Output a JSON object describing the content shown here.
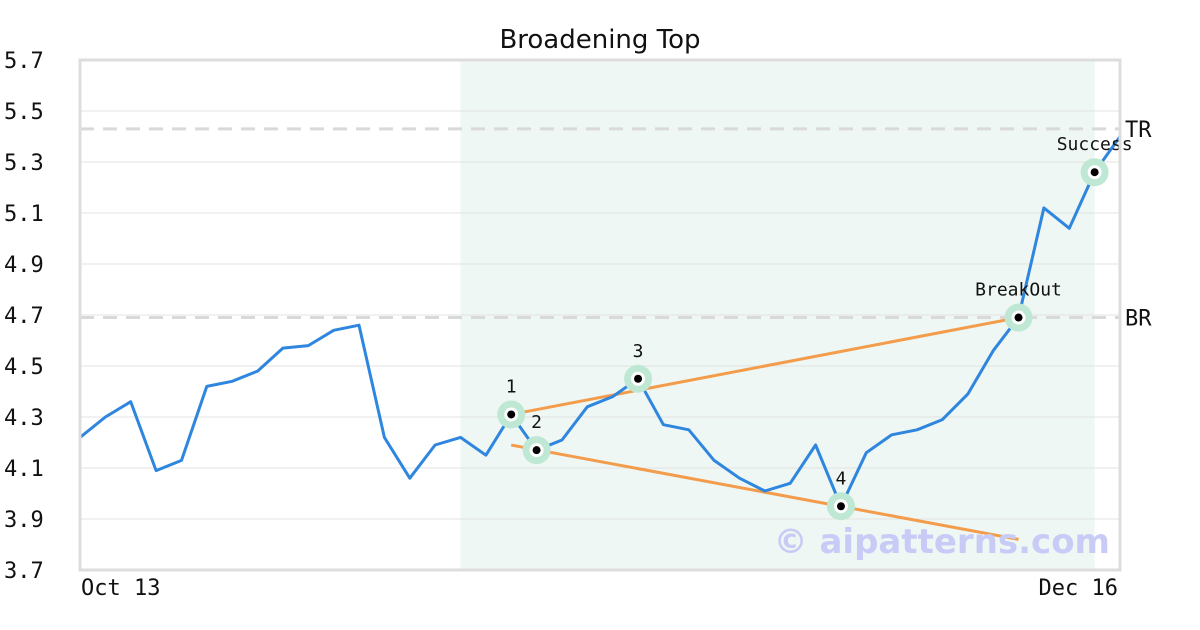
{
  "chart_data": {
    "type": "line",
    "title": "Broadening Top",
    "xlabel": "",
    "ylabel": "",
    "x_tick_labels": [
      "Oct 13",
      "Dec 16"
    ],
    "y_ticks": [
      "3.7",
      "3.9",
      "4.1",
      "4.3",
      "4.5",
      "4.7",
      "4.9",
      "5.1",
      "5.3",
      "5.5",
      "5.7"
    ],
    "ylim": [
      3.7,
      5.7
    ],
    "grid": "horizontal",
    "line_color": "#2e86de",
    "trend_color": "#f39c4b",
    "highlight_color": "#eef7f3",
    "marker_halo_color": "#bfe8d4",
    "series": [
      {
        "values": [
          4.22,
          4.3,
          4.36,
          4.09,
          4.13,
          4.42,
          4.44,
          4.48,
          4.57,
          4.58,
          4.64,
          4.66,
          4.22,
          4.06,
          4.19,
          4.22,
          4.15,
          4.31,
          4.17,
          4.21,
          4.34,
          4.38,
          4.45,
          4.27,
          4.25,
          4.13,
          4.06,
          4.01,
          4.04,
          4.19,
          3.95,
          4.16,
          4.23,
          4.25,
          4.29,
          4.39,
          4.56,
          4.69,
          5.12,
          5.04,
          5.26,
          5.4
        ]
      }
    ],
    "highlight_range": {
      "from_index": 15,
      "to_index": 40
    },
    "trend_lines": [
      {
        "from": {
          "index": 17,
          "value": 4.31
        },
        "to": {
          "index": 37,
          "value": 4.69
        }
      },
      {
        "from": {
          "index": 17,
          "value": 4.19
        },
        "to": {
          "index": 37,
          "value": 3.82
        }
      }
    ],
    "levels": [
      {
        "label": "TR",
        "value": 5.43
      },
      {
        "label": "BR",
        "value": 4.69
      }
    ],
    "annotations": [
      {
        "label": "1",
        "index": 17,
        "value": 4.31,
        "label_pos": "above"
      },
      {
        "label": "2",
        "index": 18,
        "value": 4.17,
        "label_pos": "above"
      },
      {
        "label": "3",
        "index": 22,
        "value": 4.45,
        "label_pos": "above"
      },
      {
        "label": "4",
        "index": 30,
        "value": 3.95,
        "label_pos": "above"
      },
      {
        "label": "BreakOut",
        "index": 37,
        "value": 4.69,
        "label_pos": "above"
      },
      {
        "label": "Success",
        "index": 40,
        "value": 5.26,
        "label_pos": "above"
      }
    ],
    "watermark": "© aipatterns.com"
  }
}
